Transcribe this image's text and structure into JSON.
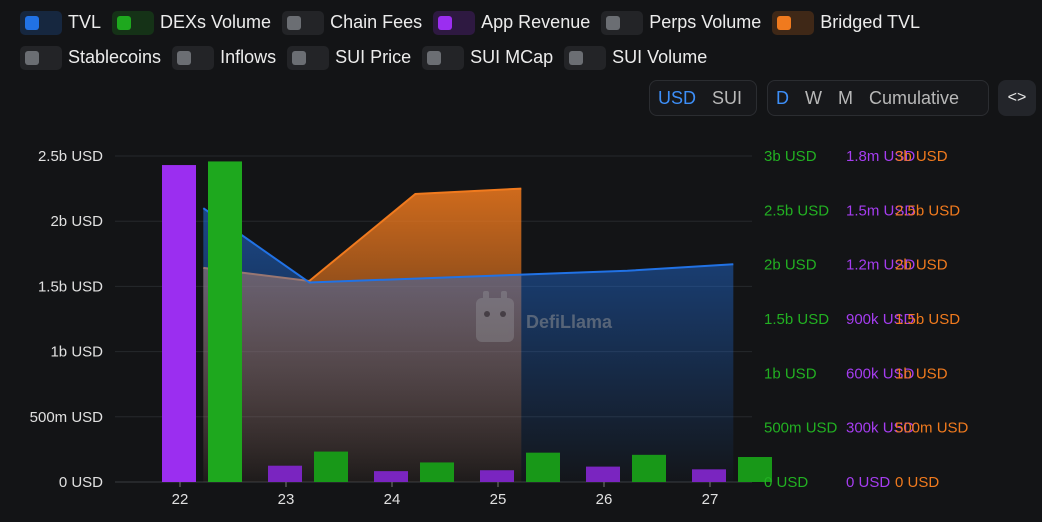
{
  "toggles": [
    {
      "label": "TVL",
      "on": true,
      "color": "#2172e5"
    },
    {
      "label": "DEXs Volume",
      "on": true,
      "color": "#1ea81e"
    },
    {
      "label": "Chain Fees",
      "on": false,
      "color": "#6b6e73"
    },
    {
      "label": "App Revenue",
      "on": true,
      "color": "#9b2ef0"
    },
    {
      "label": "Perps Volume",
      "on": false,
      "color": "#6b6e73"
    },
    {
      "label": "Bridged TVL",
      "on": true,
      "color": "#f07a1e"
    },
    {
      "label": "Stablecoins",
      "on": false,
      "color": "#6b6e73"
    },
    {
      "label": "Inflows",
      "on": false,
      "color": "#6b6e73"
    },
    {
      "label": "SUI Price",
      "on": false,
      "color": "#6b6e73"
    },
    {
      "label": "SUI MCap",
      "on": false,
      "color": "#6b6e73"
    },
    {
      "label": "SUI Volume",
      "on": false,
      "color": "#6b6e73"
    }
  ],
  "denomination": {
    "options": [
      "USD",
      "SUI"
    ],
    "selected": "USD"
  },
  "period": {
    "options": [
      "D",
      "W",
      "M",
      "Cumulative"
    ],
    "selected": "D"
  },
  "embed_label": "<>",
  "watermark": "DefiLlama",
  "chart_data": {
    "type": "bar",
    "categories": [
      "22",
      "23",
      "24",
      "25",
      "26",
      "27"
    ],
    "series": [
      {
        "name": "TVL",
        "type": "area",
        "axis": "tvl",
        "color": "#2172e5",
        "x": [
          22.22,
          23.22,
          24.22,
          25.22,
          26.22,
          27.22
        ],
        "values": [
          2100000000,
          1530000000,
          1560000000,
          1590000000,
          1620000000,
          1670000000
        ]
      },
      {
        "name": "Bridged TVL",
        "type": "area",
        "axis": "bridged",
        "color": "#f07a1e",
        "x": [
          22.22,
          23.22,
          24.22,
          25.22
        ],
        "values": [
          1970000000,
          1850000000,
          2650000000,
          2700000000
        ]
      },
      {
        "name": "App Revenue",
        "type": "bar",
        "axis": "revenue",
        "color": "#9b2ef0",
        "x": [
          22,
          23,
          24,
          25,
          26,
          27
        ],
        "values": [
          1750000,
          90000,
          60000,
          65000,
          85000,
          70000
        ]
      },
      {
        "name": "DEXs Volume",
        "type": "bar",
        "axis": "dex",
        "color": "#1ea81e",
        "x": [
          22,
          23,
          24,
          25,
          26,
          27
        ],
        "values": [
          2950000000,
          280000000,
          180000000,
          270000000,
          250000000,
          230000000
        ]
      }
    ],
    "axes": {
      "tvl": {
        "ticks": [
          "0 USD",
          "500m USD",
          "1b USD",
          "1.5b USD",
          "2b USD",
          "2.5b USD"
        ],
        "max": 2500000000,
        "color": "#e0e0e0"
      },
      "dex": {
        "ticks": [
          "0 USD",
          "500m USD",
          "1b USD",
          "1.5b USD",
          "2b USD",
          "2.5b USD",
          "3b USD"
        ],
        "max": 3000000000,
        "color": "#22b022"
      },
      "revenue": {
        "ticks": [
          "0 USD",
          "300k USD",
          "600k USD",
          "900k USD",
          "1.2m USD",
          "1.5m USD",
          "1.8m USD"
        ],
        "max": 1800000,
        "color": "#a53df0"
      },
      "bridged": {
        "ticks": [
          "0 USD",
          "500m USD",
          "1b USD",
          "1.5b USD",
          "2b USD",
          "2.5b USD",
          "3b USD"
        ],
        "max": 3000000000,
        "color": "#f07a1e"
      }
    },
    "grid": true
  }
}
